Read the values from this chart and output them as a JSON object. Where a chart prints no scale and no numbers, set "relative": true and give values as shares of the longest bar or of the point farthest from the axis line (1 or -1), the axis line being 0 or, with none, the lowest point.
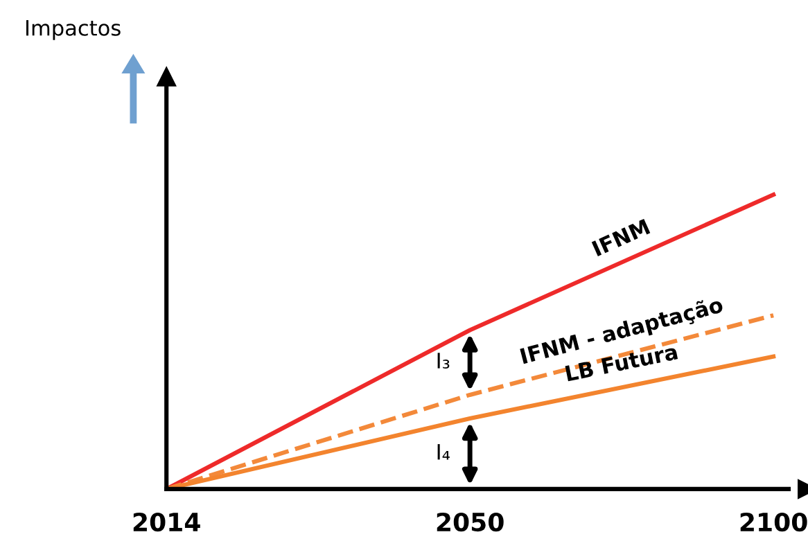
{
  "chart_data": {
    "type": "line",
    "relative": true,
    "categories": [
      "2014",
      "2050",
      "2100"
    ],
    "series": [
      {
        "name": "IFNM",
        "color": "#ee2a2a",
        "values": [
          0,
          0.54,
          1
        ],
        "line_style": "solid"
      },
      {
        "name": "IFNM - adaptação",
        "color": "#f3893a",
        "values": [
          0,
          0.32,
          0.59
        ],
        "line_style": "dashed"
      },
      {
        "name": "LB Futura",
        "color": "#f3842e",
        "values": [
          0,
          0.24,
          0.45
        ],
        "line_style": "solid"
      }
    ],
    "annotations": [
      "Impactos",
      "I₃",
      "I₄"
    ],
    "grid": false,
    "legend": false,
    "marker": "none"
  }
}
